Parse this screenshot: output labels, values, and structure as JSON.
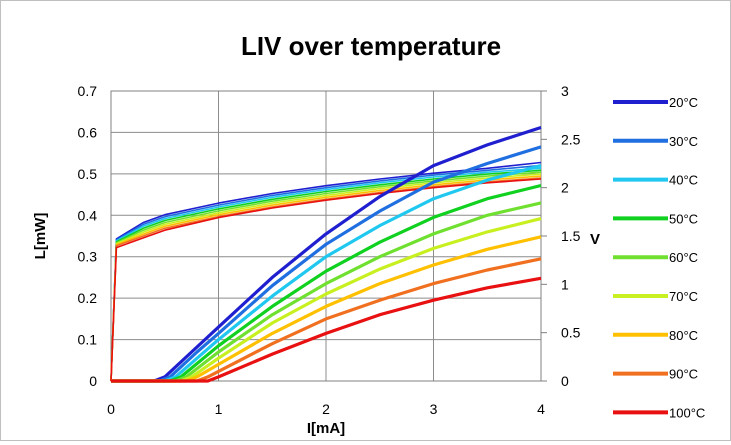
{
  "chart_data": {
    "type": "line",
    "title": "LIV over temperature",
    "xlabel": "I[mA]",
    "ylabel": "L[mW]",
    "y2label": "V",
    "xlim": [
      0,
      4
    ],
    "ylim": [
      0,
      0.7
    ],
    "y2lim": [
      0,
      3
    ],
    "x_ticks": [
      0,
      1,
      2,
      3,
      4
    ],
    "y_ticks": [
      0,
      0.1,
      0.2,
      0.3,
      0.4,
      0.5,
      0.6,
      0.7
    ],
    "y2_ticks": [
      0,
      0.5,
      1,
      1.5,
      2,
      2.5,
      3
    ],
    "grid": true,
    "legend_position": "right",
    "series": [
      {
        "name": "20°C",
        "color": "#1f1fd0",
        "L": [
          [
            0,
            0
          ],
          [
            0.4,
            0
          ],
          [
            0.5,
            0.01
          ],
          [
            0.75,
            0.07
          ],
          [
            1,
            0.13
          ],
          [
            1.5,
            0.25
          ],
          [
            2,
            0.355
          ],
          [
            2.5,
            0.445
          ],
          [
            3,
            0.52
          ],
          [
            3.5,
            0.57
          ],
          [
            4,
            0.612
          ]
        ],
        "V": [
          [
            0,
            0
          ],
          [
            0.05,
            1.47
          ],
          [
            0.3,
            1.64
          ],
          [
            0.5,
            1.72
          ],
          [
            1,
            1.84
          ],
          [
            1.5,
            1.94
          ],
          [
            2,
            2.02
          ],
          [
            2.5,
            2.09
          ],
          [
            3,
            2.15
          ],
          [
            3.5,
            2.2
          ],
          [
            4,
            2.26
          ]
        ]
      },
      {
        "name": "30°C",
        "color": "#1f6fe0",
        "L": [
          [
            0,
            0
          ],
          [
            0.45,
            0
          ],
          [
            0.55,
            0.01
          ],
          [
            0.8,
            0.07
          ],
          [
            1,
            0.115
          ],
          [
            1.5,
            0.23
          ],
          [
            2,
            0.33
          ],
          [
            2.5,
            0.41
          ],
          [
            3,
            0.48
          ],
          [
            3.5,
            0.525
          ],
          [
            4,
            0.565
          ]
        ],
        "V": [
          [
            0,
            0
          ],
          [
            0.05,
            1.46
          ],
          [
            0.3,
            1.62
          ],
          [
            0.5,
            1.7
          ],
          [
            1,
            1.82
          ],
          [
            1.5,
            1.92
          ],
          [
            2,
            2.0
          ],
          [
            2.5,
            2.07
          ],
          [
            3,
            2.13
          ],
          [
            3.5,
            2.18
          ],
          [
            4,
            2.23
          ]
        ]
      },
      {
        "name": "40°C",
        "color": "#20c8f0",
        "L": [
          [
            0,
            0
          ],
          [
            0.5,
            0
          ],
          [
            0.6,
            0.01
          ],
          [
            1,
            0.1
          ],
          [
            1.5,
            0.205
          ],
          [
            2,
            0.3
          ],
          [
            2.5,
            0.375
          ],
          [
            3,
            0.44
          ],
          [
            3.5,
            0.485
          ],
          [
            4,
            0.52
          ]
        ],
        "V": [
          [
            0,
            0
          ],
          [
            0.05,
            1.45
          ],
          [
            0.3,
            1.6
          ],
          [
            0.5,
            1.68
          ],
          [
            1,
            1.8
          ],
          [
            1.5,
            1.9
          ],
          [
            2,
            1.98
          ],
          [
            2.5,
            2.05
          ],
          [
            3,
            2.11
          ],
          [
            3.5,
            2.16
          ],
          [
            4,
            2.2
          ]
        ]
      },
      {
        "name": "50°C",
        "color": "#10d020",
        "L": [
          [
            0,
            0
          ],
          [
            0.55,
            0
          ],
          [
            0.65,
            0.01
          ],
          [
            1,
            0.085
          ],
          [
            1.5,
            0.18
          ],
          [
            2,
            0.265
          ],
          [
            2.5,
            0.335
          ],
          [
            3,
            0.395
          ],
          [
            3.5,
            0.44
          ],
          [
            4,
            0.472
          ]
        ],
        "V": [
          [
            0,
            0
          ],
          [
            0.05,
            1.44
          ],
          [
            0.3,
            1.58
          ],
          [
            0.5,
            1.66
          ],
          [
            1,
            1.78
          ],
          [
            1.5,
            1.88
          ],
          [
            2,
            1.96
          ],
          [
            2.5,
            2.03
          ],
          [
            3,
            2.09
          ],
          [
            3.5,
            2.14
          ],
          [
            4,
            2.18
          ]
        ]
      },
      {
        "name": "60°C",
        "color": "#70e030",
        "L": [
          [
            0,
            0
          ],
          [
            0.6,
            0
          ],
          [
            0.7,
            0.01
          ],
          [
            1,
            0.07
          ],
          [
            1.5,
            0.16
          ],
          [
            2,
            0.235
          ],
          [
            2.5,
            0.3
          ],
          [
            3,
            0.355
          ],
          [
            3.5,
            0.4
          ],
          [
            4,
            0.43
          ]
        ],
        "V": [
          [
            0,
            0
          ],
          [
            0.05,
            1.43
          ],
          [
            0.3,
            1.56
          ],
          [
            0.5,
            1.64
          ],
          [
            1,
            1.76
          ],
          [
            1.5,
            1.86
          ],
          [
            2,
            1.94
          ],
          [
            2.5,
            2.01
          ],
          [
            3,
            2.07
          ],
          [
            3.5,
            2.12
          ],
          [
            4,
            2.16
          ]
        ]
      },
      {
        "name": "70°C",
        "color": "#c8f020",
        "L": [
          [
            0,
            0
          ],
          [
            0.65,
            0
          ],
          [
            0.75,
            0.01
          ],
          [
            1,
            0.055
          ],
          [
            1.5,
            0.14
          ],
          [
            2,
            0.21
          ],
          [
            2.5,
            0.27
          ],
          [
            3,
            0.32
          ],
          [
            3.5,
            0.36
          ],
          [
            4,
            0.392
          ]
        ],
        "V": [
          [
            0,
            0
          ],
          [
            0.05,
            1.42
          ],
          [
            0.3,
            1.54
          ],
          [
            0.5,
            1.62
          ],
          [
            1,
            1.74
          ],
          [
            1.5,
            1.84
          ],
          [
            2,
            1.92
          ],
          [
            2.5,
            1.99
          ],
          [
            3,
            2.05
          ],
          [
            3.5,
            2.1
          ],
          [
            4,
            2.14
          ]
        ]
      },
      {
        "name": "80°C",
        "color": "#ffc000",
        "L": [
          [
            0,
            0
          ],
          [
            0.7,
            0
          ],
          [
            0.8,
            0.01
          ],
          [
            1,
            0.04
          ],
          [
            1.5,
            0.115
          ],
          [
            2,
            0.18
          ],
          [
            2.5,
            0.235
          ],
          [
            3,
            0.28
          ],
          [
            3.5,
            0.318
          ],
          [
            4,
            0.348
          ]
        ],
        "V": [
          [
            0,
            0
          ],
          [
            0.05,
            1.41
          ],
          [
            0.3,
            1.52
          ],
          [
            0.5,
            1.6
          ],
          [
            1,
            1.72
          ],
          [
            1.5,
            1.82
          ],
          [
            2,
            1.9
          ],
          [
            2.5,
            1.97
          ],
          [
            3,
            2.03
          ],
          [
            3.5,
            2.08
          ],
          [
            4,
            2.12
          ]
        ]
      },
      {
        "name": "90°C",
        "color": "#f07020",
        "L": [
          [
            0,
            0
          ],
          [
            0.8,
            0
          ],
          [
            0.9,
            0.01
          ],
          [
            1.2,
            0.05
          ],
          [
            1.5,
            0.09
          ],
          [
            2,
            0.15
          ],
          [
            2.5,
            0.195
          ],
          [
            3,
            0.235
          ],
          [
            3.5,
            0.268
          ],
          [
            4,
            0.295
          ]
        ],
        "V": [
          [
            0,
            0
          ],
          [
            0.05,
            1.4
          ],
          [
            0.3,
            1.5
          ],
          [
            0.5,
            1.58
          ],
          [
            1,
            1.7
          ],
          [
            1.5,
            1.8
          ],
          [
            2,
            1.88
          ],
          [
            2.5,
            1.95
          ],
          [
            3,
            2.01
          ],
          [
            3.5,
            2.06
          ],
          [
            4,
            2.1
          ]
        ]
      },
      {
        "name": "100°C",
        "color": "#e81010",
        "L": [
          [
            0,
            0
          ],
          [
            0.9,
            0
          ],
          [
            1,
            0.01
          ],
          [
            1.5,
            0.065
          ],
          [
            2,
            0.115
          ],
          [
            2.5,
            0.16
          ],
          [
            3,
            0.195
          ],
          [
            3.5,
            0.225
          ],
          [
            4,
            0.248
          ]
        ],
        "V": [
          [
            0,
            0
          ],
          [
            0.05,
            1.38
          ],
          [
            0.3,
            1.48
          ],
          [
            0.5,
            1.56
          ],
          [
            1,
            1.69
          ],
          [
            1.5,
            1.79
          ],
          [
            2,
            1.87
          ],
          [
            2.5,
            1.94
          ],
          [
            3,
            2.0
          ],
          [
            3.5,
            2.05
          ],
          [
            4,
            2.09
          ]
        ]
      }
    ]
  }
}
